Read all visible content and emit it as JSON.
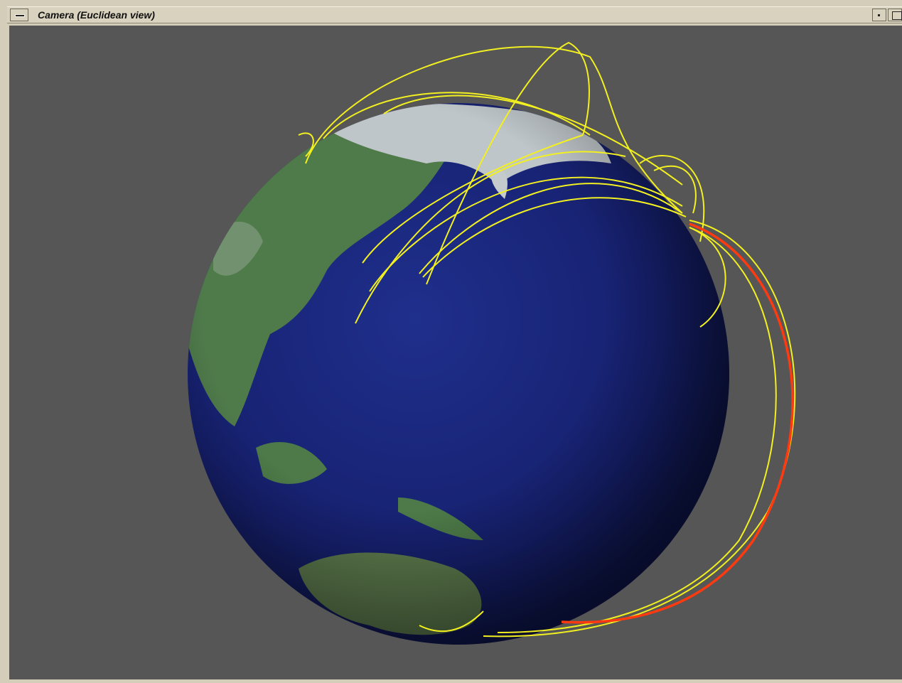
{
  "window": {
    "title": "Camera (Euclidean view)"
  }
}
